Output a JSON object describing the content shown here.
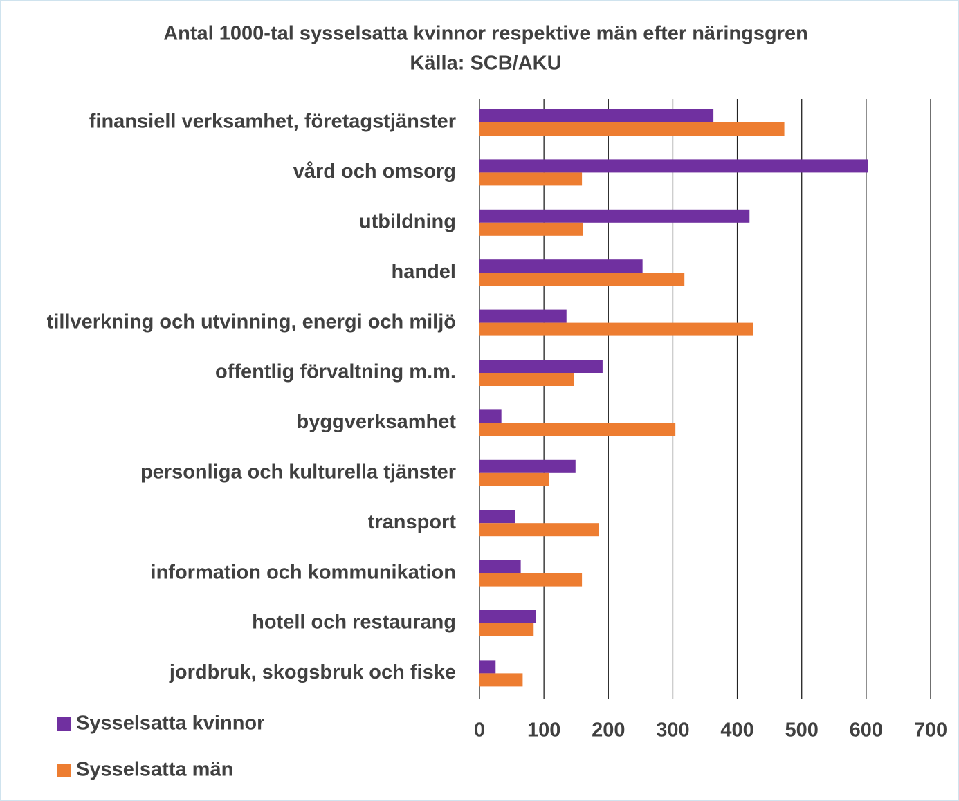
{
  "chart_data": {
    "type": "bar",
    "orientation": "horizontal",
    "title": "Antal 1000-tal sysselsatta kvinnor respektive män efter näringsgren",
    "subtitle": "Källa: SCB/AKU",
    "categories": [
      "finansiell verksamhet, företagstjänster",
      "vård och omsorg",
      "utbildning",
      "handel",
      "tillverkning och utvinning, energi och miljö",
      "offentlig förvaltning m.m.",
      "byggverksamhet",
      "personliga och kulturella tjänster",
      "transport",
      "information och kommunikation",
      "hotell och restaurang",
      "jordbruk, skogsbruk och fiske"
    ],
    "series": [
      {
        "name": "Sysselsatta kvinnor",
        "color": "#7030a0",
        "values": [
          363,
          603,
          419,
          253,
          135,
          191,
          34,
          149,
          55,
          64,
          88,
          25
        ]
      },
      {
        "name": "Sysselsatta män",
        "color": "#ed7d31",
        "values": [
          473,
          159,
          161,
          318,
          425,
          147,
          304,
          108,
          185,
          159,
          84,
          67
        ]
      }
    ],
    "xlim": [
      0,
      700
    ],
    "xticks": [
      0,
      100,
      200,
      300,
      400,
      500,
      600,
      700
    ],
    "grid": true,
    "legend": "bottom-left"
  }
}
